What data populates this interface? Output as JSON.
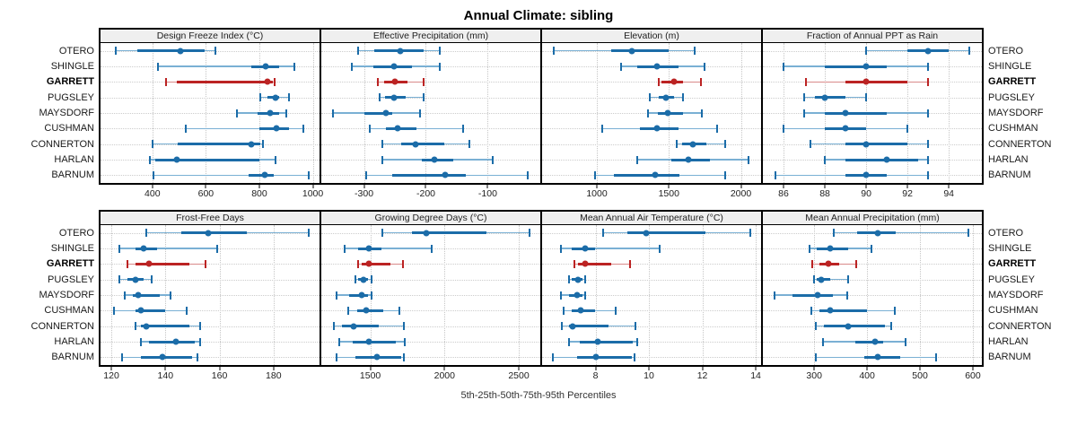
{
  "title": "Annual Climate: sibling",
  "footer": "5th-25th-50th-75th-95th Percentiles",
  "colors": {
    "blue_dark": "#1b6ca8",
    "blue_light": "#7ab0d4",
    "red_dark": "#bb2323",
    "red_light": "#d98a8a",
    "grid": "#c9c9c9",
    "panel_header_bg": "#efefef",
    "border": "#000000"
  },
  "chart_data": {
    "type": "dotplot-trellis",
    "layout": {
      "rows": 2,
      "cols": 4,
      "grid": "dotted",
      "station_labels": "both-sides"
    },
    "percentiles": [
      5,
      25,
      50,
      75,
      95
    ],
    "values_format": "[p5, p25, p50, p75, p95]",
    "stations": [
      "OTERO",
      "SHINGLE",
      "GARRETT",
      "PUGSLEY",
      "MAYSDORF",
      "CUSHMAN",
      "CONNERTON",
      "HARLAN",
      "BARNUM"
    ],
    "highlight_station": "GARRETT",
    "panels": [
      {
        "title": "Design Freeze Index (°C)",
        "xlim": [
          206,
          1025
        ],
        "ticks": [
          400,
          600,
          800,
          1000
        ],
        "values": {
          "OTERO": [
            263,
            345,
            505,
            595,
            635
          ],
          "SHINGLE": [
            420,
            770,
            825,
            875,
            930
          ],
          "GARRETT": [
            450,
            490,
            830,
            852,
            857
          ],
          "PUGSLEY": [
            805,
            830,
            860,
            875,
            910
          ],
          "MAYSDORF": [
            715,
            795,
            840,
            875,
            900
          ],
          "CUSHMAN": [
            525,
            800,
            865,
            910,
            965
          ],
          "CONNERTON": [
            400,
            495,
            770,
            805,
            815
          ],
          "HARLAN": [
            390,
            410,
            490,
            800,
            860
          ],
          "BARNUM": [
            405,
            760,
            820,
            855,
            985
          ]
        }
      },
      {
        "title": "Effective Precipitation (mm)",
        "xlim": [
          -369,
          -15
        ],
        "ticks": [
          -300,
          -200,
          -100
        ],
        "values": {
          "OTERO": [
            -310,
            -283,
            -242,
            -203,
            -177
          ],
          "SHINGLE": [
            -320,
            -285,
            -252,
            -222,
            -177
          ],
          "GARRETT": [
            -277,
            -268,
            -250,
            -230,
            -204
          ],
          "PUGSLEY": [
            -274,
            -266,
            -251,
            -233,
            -203
          ],
          "MAYSDORF": [
            -350,
            -299,
            -265,
            -254,
            -210
          ],
          "CUSHMAN": [
            -290,
            -265,
            -245,
            -215,
            -140
          ],
          "CONNERTON": [
            -270,
            -240,
            -216,
            -170,
            -130
          ],
          "HARLAN": [
            -270,
            -207,
            -186,
            -156,
            -92
          ],
          "BARNUM": [
            -297,
            -254,
            -169,
            -136,
            -35
          ]
        }
      },
      {
        "title": "Elevation (m)",
        "xlim": [
          620,
          2140
        ],
        "ticks": [
          1000,
          1500,
          2000
        ],
        "values": {
          "OTERO": [
            700,
            1100,
            1245,
            1500,
            1680
          ],
          "SHINGLE": [
            1170,
            1280,
            1420,
            1565,
            1750
          ],
          "GARRETT": [
            1430,
            1450,
            1535,
            1595,
            1725
          ],
          "PUGSLEY": [
            1370,
            1430,
            1480,
            1535,
            1595
          ],
          "MAYSDORF": [
            1355,
            1425,
            1490,
            1595,
            1730
          ],
          "CUSHMAN": [
            1040,
            1300,
            1420,
            1565,
            1835
          ],
          "CONNERTON": [
            1555,
            1590,
            1665,
            1760,
            1890
          ],
          "HARLAN": [
            1280,
            1515,
            1633,
            1785,
            2055
          ],
          "BARNUM": [
            990,
            1120,
            1403,
            1575,
            1890
          ]
        }
      },
      {
        "title": "Fraction of Annual PPT as Rain",
        "xlim": [
          85,
          95.6
        ],
        "ticks": [
          86,
          88,
          90,
          92,
          94
        ],
        "values": {
          "OTERO": [
            90.0,
            92.0,
            93.0,
            94.0,
            95.0
          ],
          "SHINGLE": [
            86.0,
            88.0,
            90.0,
            91.0,
            93.0
          ],
          "GARRETT": [
            87.1,
            89.0,
            90.0,
            92.0,
            93.0
          ],
          "PUGSLEY": [
            87.0,
            87.5,
            88.0,
            89.0,
            90.0
          ],
          "MAYSDORF": [
            87.0,
            88.0,
            89.0,
            91.0,
            93.0
          ],
          "CUSHMAN": [
            86.0,
            88.0,
            89.0,
            90.0,
            92.0
          ],
          "CONNERTON": [
            87.3,
            89.0,
            90.0,
            92.0,
            93.0
          ],
          "HARLAN": [
            88.0,
            89.0,
            91.0,
            92.5,
            93.0
          ],
          "BARNUM": [
            85.6,
            89.0,
            90.0,
            91.0,
            93.0
          ]
        }
      },
      {
        "title": "Frost-Free Days",
        "xlim": [
          116,
          197
        ],
        "ticks": [
          120,
          140,
          160,
          180
        ],
        "values": {
          "OTERO": [
            133,
            146,
            156,
            170,
            193
          ],
          "SHINGLE": [
            123,
            129,
            132,
            137,
            159
          ],
          "GARRETT": [
            126,
            129,
            134,
            149,
            155
          ],
          "PUGSLEY": [
            123,
            126,
            129,
            132,
            135
          ],
          "MAYSDORF": [
            125,
            128,
            130,
            138,
            142
          ],
          "CUSHMAN": [
            121,
            129,
            131,
            140,
            148
          ],
          "CONNERTON": [
            129,
            131,
            133,
            149,
            153
          ],
          "HARLAN": [
            131,
            134,
            144,
            151,
            153
          ],
          "BARNUM": [
            124,
            131,
            139,
            150,
            152
          ]
        }
      },
      {
        "title": "Growing Degree Days (°C)",
        "xlim": [
          1170,
          2645
        ],
        "ticks": [
          1500,
          2000,
          2500
        ],
        "values": {
          "OTERO": [
            1580,
            1780,
            1880,
            2280,
            2570
          ],
          "SHINGLE": [
            1325,
            1420,
            1490,
            1575,
            1915
          ],
          "GARRETT": [
            1420,
            1445,
            1490,
            1635,
            1720
          ],
          "PUGSLEY": [
            1400,
            1420,
            1455,
            1485,
            1510
          ],
          "MAYSDORF": [
            1275,
            1360,
            1445,
            1485,
            1510
          ],
          "CUSHMAN": [
            1350,
            1410,
            1470,
            1585,
            1695
          ],
          "CONNERTON": [
            1255,
            1310,
            1385,
            1555,
            1725
          ],
          "HARLAN": [
            1290,
            1380,
            1490,
            1670,
            1730
          ],
          "BARNUM": [
            1275,
            1400,
            1545,
            1710,
            1725
          ]
        }
      },
      {
        "title": "Mean Annual Air Temperature (°C)",
        "xlim": [
          6.0,
          14.2
        ],
        "ticks": [
          8,
          10,
          12,
          14
        ],
        "values": {
          "OTERO": [
            8.3,
            9.2,
            9.9,
            12.1,
            13.8
          ],
          "SHINGLE": [
            6.7,
            7.1,
            7.6,
            8.0,
            10.4
          ],
          "GARRETT": [
            7.2,
            7.35,
            7.6,
            8.6,
            9.3
          ],
          "PUGSLEY": [
            7.0,
            7.1,
            7.35,
            7.5,
            7.6
          ],
          "MAYSDORF": [
            6.7,
            7.0,
            7.3,
            7.5,
            7.6
          ],
          "CUSHMAN": [
            6.8,
            7.1,
            7.45,
            8.0,
            8.75
          ],
          "CONNERTON": [
            6.75,
            7.0,
            7.15,
            8.5,
            9.5
          ],
          "HARLAN": [
            7.0,
            7.4,
            8.1,
            9.4,
            9.55
          ],
          "BARNUM": [
            6.4,
            7.3,
            8.0,
            9.35,
            9.45
          ]
        }
      },
      {
        "title": "Mean Annual Precipitation (mm)",
        "xlim": [
          203,
          617
        ],
        "ticks": [
          300,
          400,
          500,
          600
        ],
        "values": {
          "OTERO": [
            337,
            382,
            421,
            454,
            592
          ],
          "SHINGLE": [
            292,
            304,
            331,
            364,
            408
          ],
          "GARRETT": [
            297,
            310,
            327,
            347,
            379
          ],
          "PUGSLEY": [
            300,
            304,
            314,
            330,
            364
          ],
          "MAYSDORF": [
            225,
            259,
            307,
            335,
            362
          ],
          "CUSHMAN": [
            295,
            310,
            331,
            400,
            453
          ],
          "CONNERTON": [
            303,
            318,
            364,
            433,
            445
          ],
          "HARLAN": [
            317,
            377,
            415,
            430,
            473
          ],
          "BARNUM": [
            303,
            395,
            420,
            462,
            530
          ]
        }
      }
    ]
  }
}
